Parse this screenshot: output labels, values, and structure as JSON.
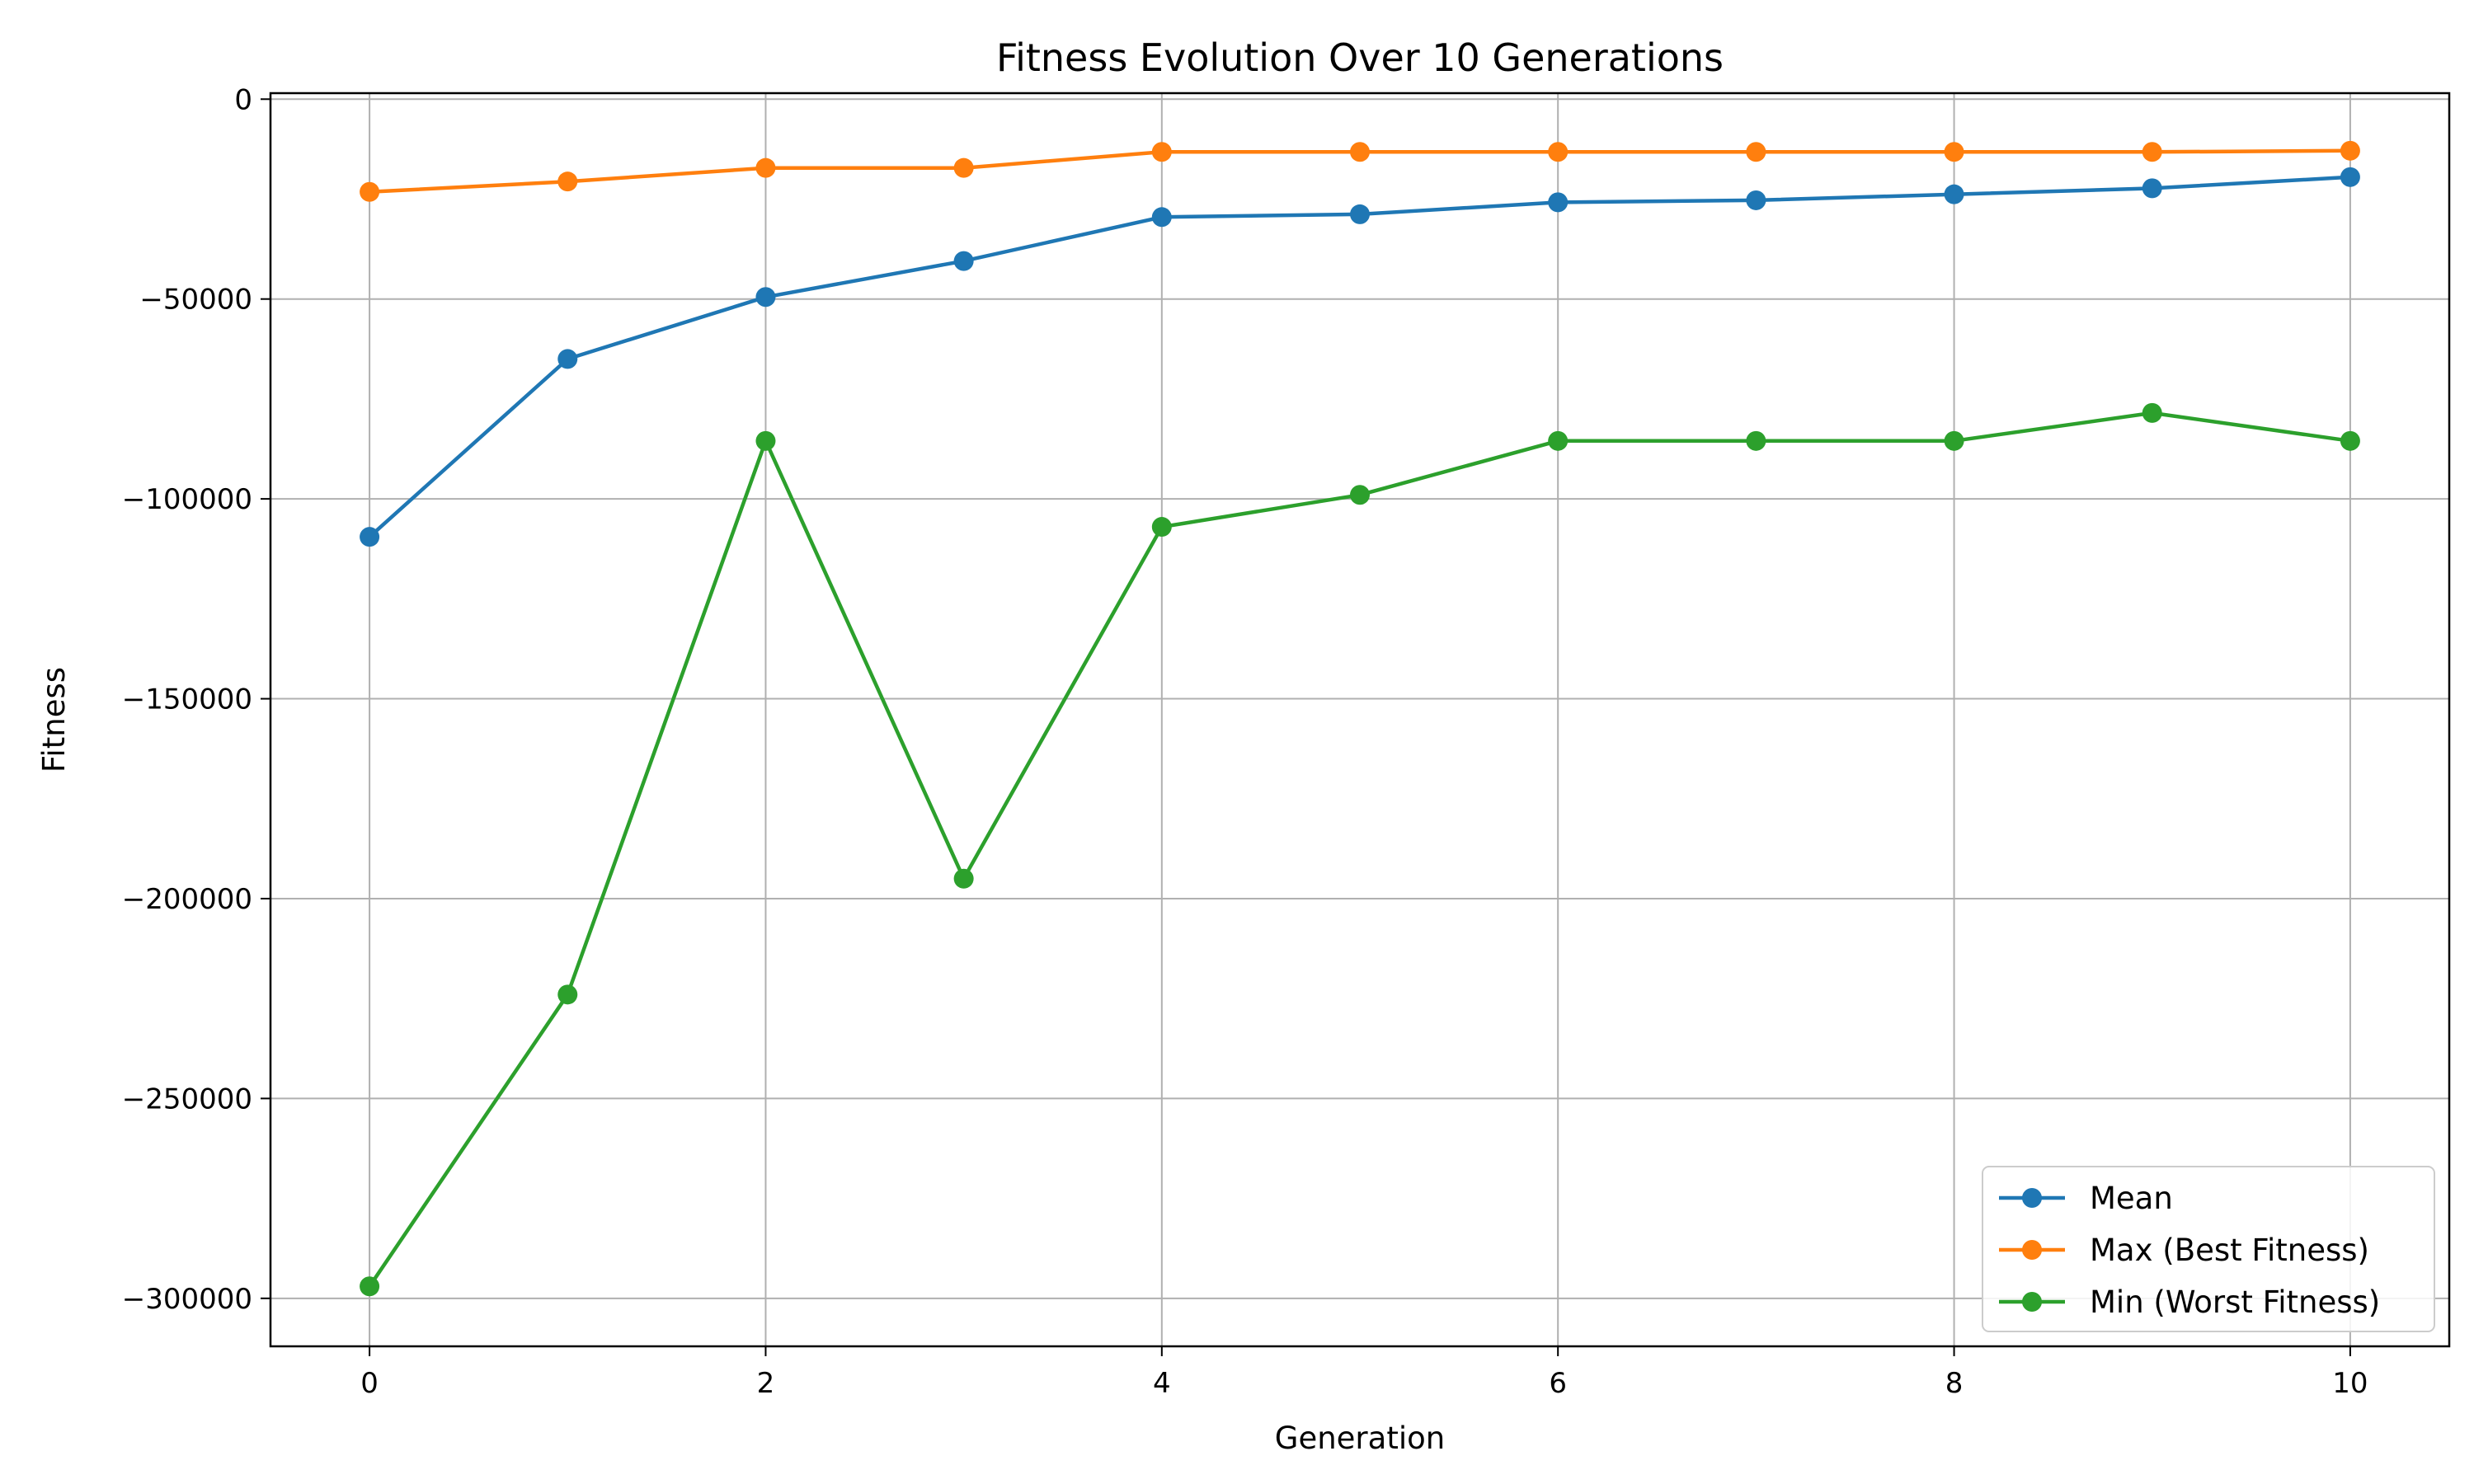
{
  "chart_data": {
    "type": "line",
    "title": "Fitness Evolution Over 10 Generations",
    "xlabel": "Generation",
    "ylabel": "Fitness",
    "x": [
      0,
      1,
      2,
      3,
      4,
      5,
      6,
      7,
      8,
      9,
      10
    ],
    "xlim": [
      -0.5,
      10.5
    ],
    "ylim": [
      -312000,
      1500
    ],
    "xticks": [
      0,
      2,
      4,
      6,
      8,
      10
    ],
    "xtick_labels": [
      "0",
      "2",
      "4",
      "6",
      "8",
      "10"
    ],
    "yticks": [
      0,
      -50000,
      -100000,
      -150000,
      -200000,
      -250000,
      -300000
    ],
    "ytick_labels": [
      "0",
      "−50000",
      "−100000",
      "−150000",
      "−200000",
      "−250000",
      "−300000"
    ],
    "grid": true,
    "legend_position": "lower-right",
    "series": [
      {
        "name": "Mean",
        "color": "#1f77b4",
        "marker": "circle",
        "values": [
          -109500,
          -65000,
          -49500,
          -40500,
          -29500,
          -28800,
          -25800,
          -25300,
          -23800,
          -22300,
          -19500
        ]
      },
      {
        "name": "Max (Best Fitness)",
        "color": "#ff7f0e",
        "marker": "circle",
        "values": [
          -23200,
          -20600,
          -17200,
          -17200,
          -13200,
          -13200,
          -13200,
          -13200,
          -13200,
          -13200,
          -12900
        ]
      },
      {
        "name": "Min (Worst Fitness)",
        "color": "#2ca02c",
        "marker": "circle",
        "values": [
          -297000,
          -224000,
          -85500,
          -195000,
          -107000,
          -99000,
          -85500,
          -85500,
          -85500,
          -78500,
          -85500
        ]
      }
    ]
  }
}
